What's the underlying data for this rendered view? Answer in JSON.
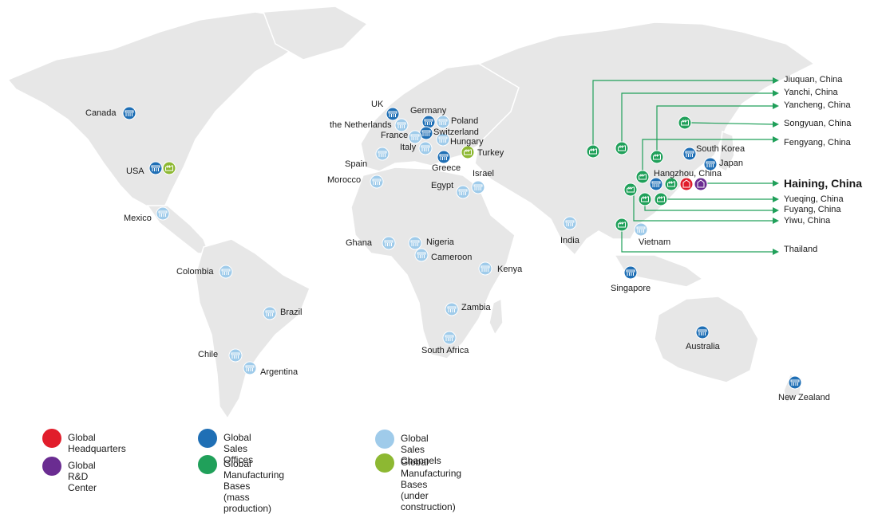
{
  "colors": {
    "hq": "#e11d2b",
    "rnd": "#6a2c91",
    "sales_office": "#1f6fb5",
    "sales_channel": "#9fcbea",
    "mfg_mass": "#20a05a",
    "mfg_construction": "#8db832",
    "land": "#e7e7e7",
    "arrow": "#20a05a"
  },
  "icons": {
    "hq": "building-icon",
    "rnd": "lab-building-icon",
    "sales_office": "storefront-icon",
    "sales_channel": "storefront-icon",
    "mfg_mass": "factory-icon",
    "mfg_construction": "factory-icon"
  },
  "locations": [
    {
      "name": "Canada",
      "type": "sales_office"
    },
    {
      "name": "USA",
      "type": "sales_office"
    },
    {
      "name": "USA",
      "type": "mfg_construction"
    },
    {
      "name": "Mexico",
      "type": "sales_channel"
    },
    {
      "name": "Colombia",
      "type": "sales_channel"
    },
    {
      "name": "Brazil",
      "type": "sales_channel"
    },
    {
      "name": "Chile",
      "type": "sales_channel"
    },
    {
      "name": "Argentina",
      "type": "sales_channel"
    },
    {
      "name": "UK",
      "type": "sales_office"
    },
    {
      "name": "Germany",
      "type": "sales_office"
    },
    {
      "name": "Poland",
      "type": "sales_channel"
    },
    {
      "name": "the Netherlands",
      "type": "sales_channel"
    },
    {
      "name": "Switzerland",
      "type": "sales_office"
    },
    {
      "name": "France",
      "type": "sales_channel"
    },
    {
      "name": "Hungary",
      "type": "sales_channel"
    },
    {
      "name": "Italy",
      "type": "sales_channel"
    },
    {
      "name": "Turkey",
      "type": "mfg_construction"
    },
    {
      "name": "Spain",
      "type": "sales_channel"
    },
    {
      "name": "Greece",
      "type": "sales_office"
    },
    {
      "name": "Morocco",
      "type": "sales_channel"
    },
    {
      "name": "Israel",
      "type": "sales_channel"
    },
    {
      "name": "Egypt",
      "type": "sales_channel"
    },
    {
      "name": "Ghana",
      "type": "sales_channel"
    },
    {
      "name": "Nigeria",
      "type": "sales_channel"
    },
    {
      "name": "Cameroon",
      "type": "sales_channel"
    },
    {
      "name": "Kenya",
      "type": "sales_channel"
    },
    {
      "name": "Zambia",
      "type": "sales_channel"
    },
    {
      "name": "South Africa",
      "type": "sales_channel"
    },
    {
      "name": "India",
      "type": "sales_channel"
    },
    {
      "name": "South Korea",
      "type": "sales_office"
    },
    {
      "name": "Japan",
      "type": "sales_office"
    },
    {
      "name": "Hangzhou, China",
      "type": "sales_office"
    },
    {
      "name": "Vietnam",
      "type": "sales_channel"
    },
    {
      "name": "Singapore",
      "type": "sales_office"
    },
    {
      "name": "Australia",
      "type": "sales_office"
    },
    {
      "name": "New Zealand",
      "type": "sales_office"
    },
    {
      "name": "Jiuquan, China",
      "type": "mfg_mass"
    },
    {
      "name": "Yanchi, China",
      "type": "mfg_mass"
    },
    {
      "name": "Yancheng, China",
      "type": "mfg_mass"
    },
    {
      "name": "Songyuan, China",
      "type": "mfg_mass"
    },
    {
      "name": "Fengyang, China",
      "type": "mfg_mass"
    },
    {
      "name": "Haining, China",
      "type": "hq"
    },
    {
      "name": "Haining, China",
      "type": "rnd"
    },
    {
      "name": "Haining, China",
      "type": "mfg_mass"
    },
    {
      "name": "Yueqing, China",
      "type": "mfg_mass"
    },
    {
      "name": "Fuyang, China",
      "type": "mfg_mass"
    },
    {
      "name": "Yiwu, China",
      "type": "mfg_mass"
    },
    {
      "name": "Thailand",
      "type": "mfg_mass"
    }
  ],
  "legend": [
    {
      "key": "hq",
      "label": "Global Headquarters"
    },
    {
      "key": "rnd",
      "label": "Global R&D Center"
    },
    {
      "key": "sales_office",
      "label": "Global Sales Offices"
    },
    {
      "key": "mfg_mass",
      "label": "Global Manufacturing Bases\n(mass production)"
    },
    {
      "key": "sales_channel",
      "label": "Global Sales Channels"
    },
    {
      "key": "mfg_construction",
      "label": "Global Manufacturing Bases\n(under construction)"
    }
  ]
}
